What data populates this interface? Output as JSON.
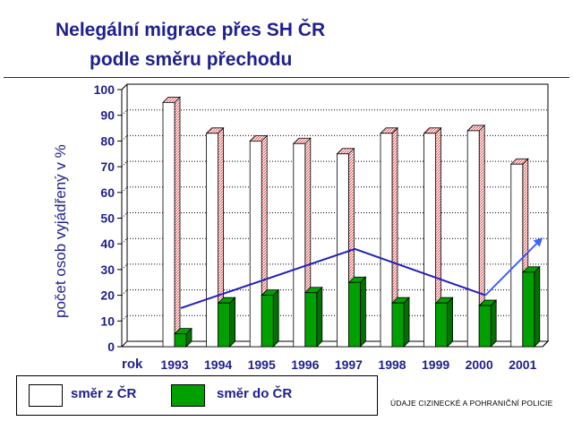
{
  "title_line1": "Nelegální migrace přes SH ČR",
  "title_line2": "podle směru přechodu",
  "source": "ÚDAJE CIZINECKÉ A POHRANIČNÍ POLICIE",
  "colors": {
    "title": "#1f1f8f",
    "series_out": "#ffffff",
    "series_out_side": "#e05050",
    "series_in": "#00a000",
    "series_in_side": "#007000",
    "trend_arrow": "#2020c0"
  },
  "legend": [
    {
      "label": "směr z ČR",
      "color": "#ffffff"
    },
    {
      "label": "směr do ČR",
      "color": "#00a000"
    }
  ],
  "chart_data": {
    "type": "bar",
    "title": "Nelegální migrace přes SH ČR podle směru přechodu",
    "ylabel": "počet osob vyjádřený v %",
    "xlabel": "rok",
    "categories": [
      "1993",
      "1994",
      "1995",
      "1996",
      "1997",
      "1998",
      "1999",
      "2000",
      "2001"
    ],
    "series": [
      {
        "name": "směr z ČR",
        "values": [
          95,
          83,
          80,
          79,
          75,
          83,
          83,
          84,
          71
        ]
      },
      {
        "name": "směr do ČR",
        "values": [
          5,
          17,
          20,
          21,
          25,
          17,
          17,
          16,
          29
        ]
      }
    ],
    "ylim": [
      0,
      100
    ],
    "yticks": [
      "0",
      "10",
      "20",
      "30",
      "40",
      "50",
      "60",
      "70",
      "80",
      "90",
      "100"
    ],
    "grid": true,
    "legend_position": "bottom-left",
    "trend_arrow": {
      "x": [
        "1993",
        "1997",
        "2000",
        "2001"
      ],
      "y": [
        15,
        38,
        20,
        42
      ]
    }
  }
}
